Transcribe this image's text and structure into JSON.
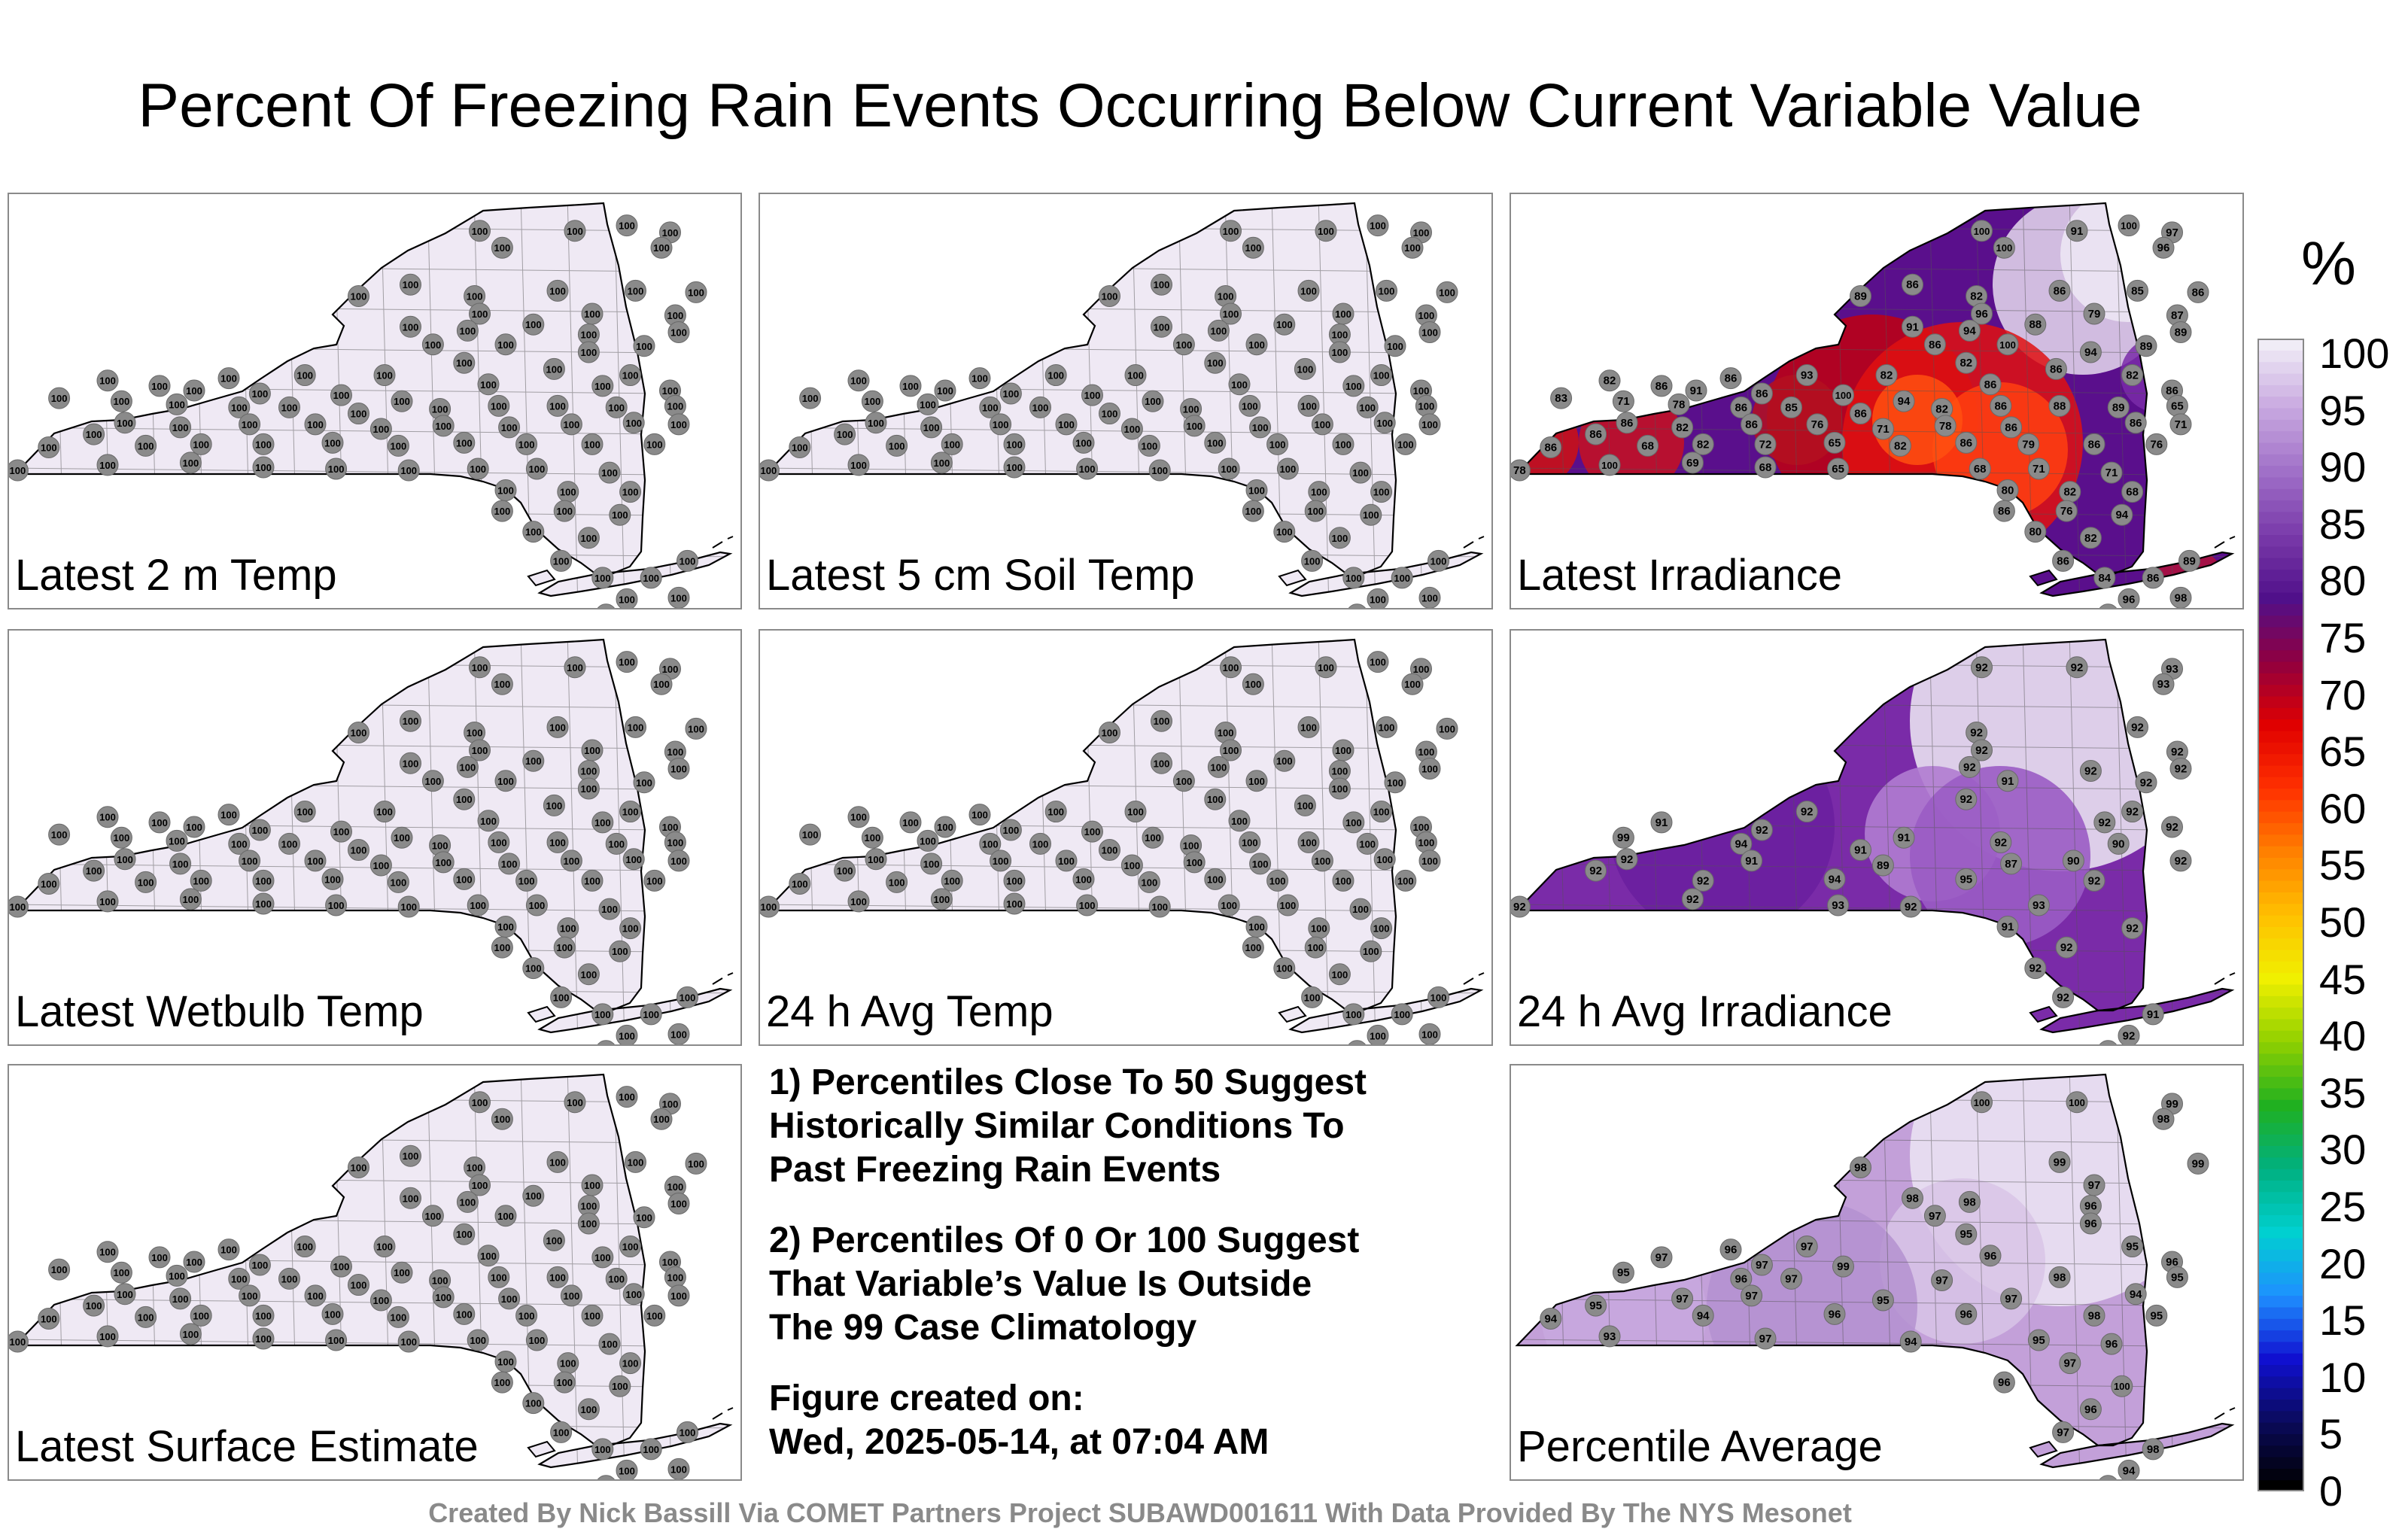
{
  "title": "Percent Of Freezing Rain Events Occurring Below Current Variable Value",
  "panels": [
    {
      "label": "Latest 2 m Temp",
      "mode": "uniform",
      "value": "100",
      "fill": "#efe9f4"
    },
    {
      "label": "Latest 5 cm Soil Temp",
      "mode": "uniform",
      "value": "100",
      "fill": "#efe9f4"
    },
    {
      "label": "Latest Irradiance",
      "mode": "irradiance",
      "fill": "#5a0f8c",
      "values": [
        "100",
        "91",
        "100",
        "97",
        "100",
        "96",
        "86",
        "94",
        "89",
        "82",
        "86",
        "85",
        "86",
        "96",
        "79",
        "87",
        "91",
        "94",
        "88",
        "89",
        "86",
        "100",
        "94",
        "89",
        "86",
        "93",
        "82",
        "82",
        "86",
        "82",
        "82",
        "86",
        "91",
        "86",
        "100",
        "94",
        "86",
        "86",
        "83",
        "71",
        "78",
        "86",
        "85",
        "86",
        "82",
        "86",
        "88",
        "89",
        "65",
        "86",
        "82",
        "86",
        "76",
        "71",
        "78",
        "86",
        "86",
        "71",
        "86",
        "86",
        "68",
        "82",
        "72",
        "65",
        "82",
        "86",
        "79",
        "86",
        "76",
        "78",
        "100",
        "69",
        "68",
        "65",
        "68",
        "71",
        "71",
        "80",
        "82",
        "68",
        "86",
        "76",
        "94",
        "80",
        "82",
        "86",
        "84",
        "86",
        "89",
        "96",
        "98",
        "68"
      ]
    },
    {
      "label": "Latest Wetbulb Temp",
      "mode": "uniform",
      "value": "100",
      "fill": "#efe9f4"
    },
    {
      "label": "24 h Avg Temp",
      "mode": "uniform",
      "value": "100",
      "fill": "#efe9f4"
    },
    {
      "label": "24 h Avg Irradiance",
      "mode": "avgirr",
      "fill": "#7a2ba8",
      "values": [
        "92",
        "92",
        "93",
        "93",
        "92",
        "92",
        "92",
        "92",
        "92",
        "92",
        "92",
        "92",
        "91",
        "92",
        "92",
        "92",
        "92",
        "91",
        "92",
        "91",
        "92",
        "92",
        "99",
        "94",
        "91",
        "92",
        "90",
        "92",
        "91",
        "89",
        "87",
        "90",
        "92",
        "92",
        "92",
        "94",
        "95",
        "92",
        "92",
        "92",
        "93",
        "92",
        "93",
        "91",
        "92",
        "92",
        "92",
        "92",
        "91",
        "92",
        "92"
      ]
    },
    {
      "label": "Latest Surface Estimate",
      "mode": "uniform",
      "value": "100",
      "fill": "#efe9f4"
    },
    {
      "label": "Percentile Average",
      "mode": "avg",
      "fill": "#c3a0d9",
      "values": [
        "100",
        "100",
        "99",
        "98",
        "98",
        "98",
        "99",
        "99",
        "97",
        "98",
        "98",
        "96",
        "97",
        "96",
        "96",
        "97",
        "95",
        "95",
        "97",
        "97",
        "99",
        "96",
        "96",
        "95",
        "96",
        "97",
        "97",
        "98",
        "95",
        "97",
        "97",
        "95",
        "97",
        "94",
        "94",
        "95",
        "94",
        "96",
        "96",
        "98",
        "95",
        "93",
        "97",
        "94",
        "95",
        "96",
        "97",
        "96",
        "100",
        "96",
        "97",
        "98",
        "94",
        "93"
      ]
    }
  ],
  "notes": [
    [
      "1) Percentiles Close To 50 Suggest",
      "Historically Similar Conditions To",
      "Past Freezing Rain Events"
    ],
    [
      "2) Percentiles Of 0 Or 100 Suggest",
      "That Variable’s Value Is Outside",
      "The 99 Case Climatology"
    ],
    [
      "Figure created on:",
      "Wed, 2025-05-14, at 07:04 AM"
    ]
  ],
  "footer": "Created By Nick Bassill Via COMET Partners Project SUBAWD001611 With Data Provided By The NYS Mesonet",
  "colorbar": {
    "unit": "%",
    "ticks": [
      "100",
      "95",
      "90",
      "85",
      "80",
      "75",
      "70",
      "65",
      "60",
      "55",
      "50",
      "45",
      "40",
      "35",
      "30",
      "25",
      "20",
      "15",
      "10",
      "5",
      "0"
    ],
    "stops": [
      "#000000",
      "#0a0a5a",
      "#1010d0",
      "#1e90ff",
      "#00d0d0",
      "#00b080",
      "#20b020",
      "#90d000",
      "#f0f000",
      "#ffc000",
      "#ff8000",
      "#ff3000",
      "#e00000",
      "#900040",
      "#50108a",
      "#7a3aaa",
      "#a070c8",
      "#c8a8e0",
      "#f0ecf6"
    ]
  }
}
